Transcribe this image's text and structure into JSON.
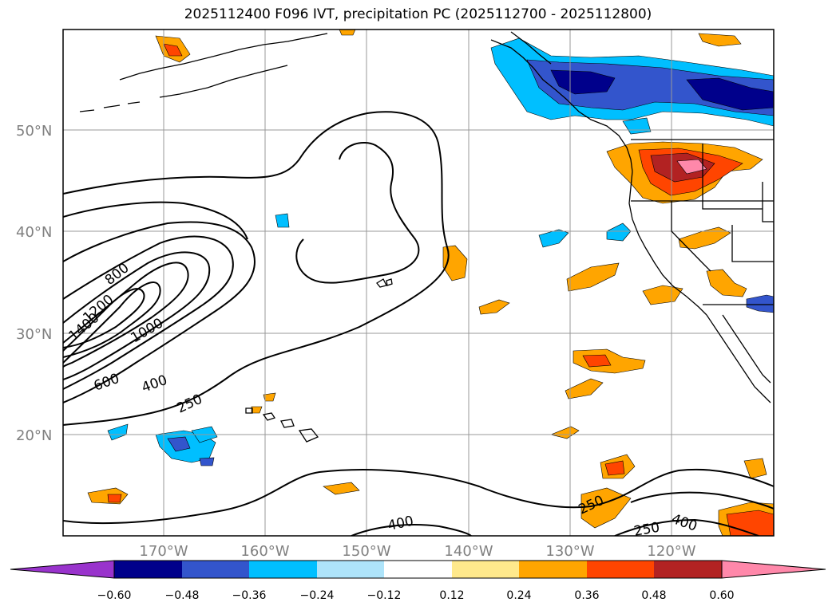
{
  "title": "2025112400 F096 IVT, precipitation PC (2025112700 - 2025112800)",
  "colors": {
    "c0": "#9933cc",
    "c1": "#00008b",
    "c2": "#3355cc",
    "c3": "#00bfff",
    "c4": "#aee4fa",
    "c5": "#ffffff",
    "c6": "#ffe98c",
    "c7": "#ffa500",
    "c8": "#ff4500",
    "c9": "#b22222",
    "c10": "#ff88aa",
    "contour": "#000000",
    "grid": "#999999",
    "label": "#808080"
  },
  "lon_labels": [
    "170°W",
    "160°W",
    "150°W",
    "140°W",
    "130°W",
    "120°W"
  ],
  "lat_labels": [
    "50°N",
    "40°N",
    "30°N",
    "20°N"
  ],
  "contour_labels": [
    "1400",
    "1200",
    "800",
    "1000",
    "600",
    "400",
    "250",
    "250",
    "400",
    "250",
    "400"
  ],
  "colorbar": {
    "ticks": [
      "−0.60",
      "−0.48",
      "−0.36",
      "−0.24",
      "−0.12",
      "0.12",
      "0.24",
      "0.36",
      "0.48",
      "0.60"
    ]
  }
}
